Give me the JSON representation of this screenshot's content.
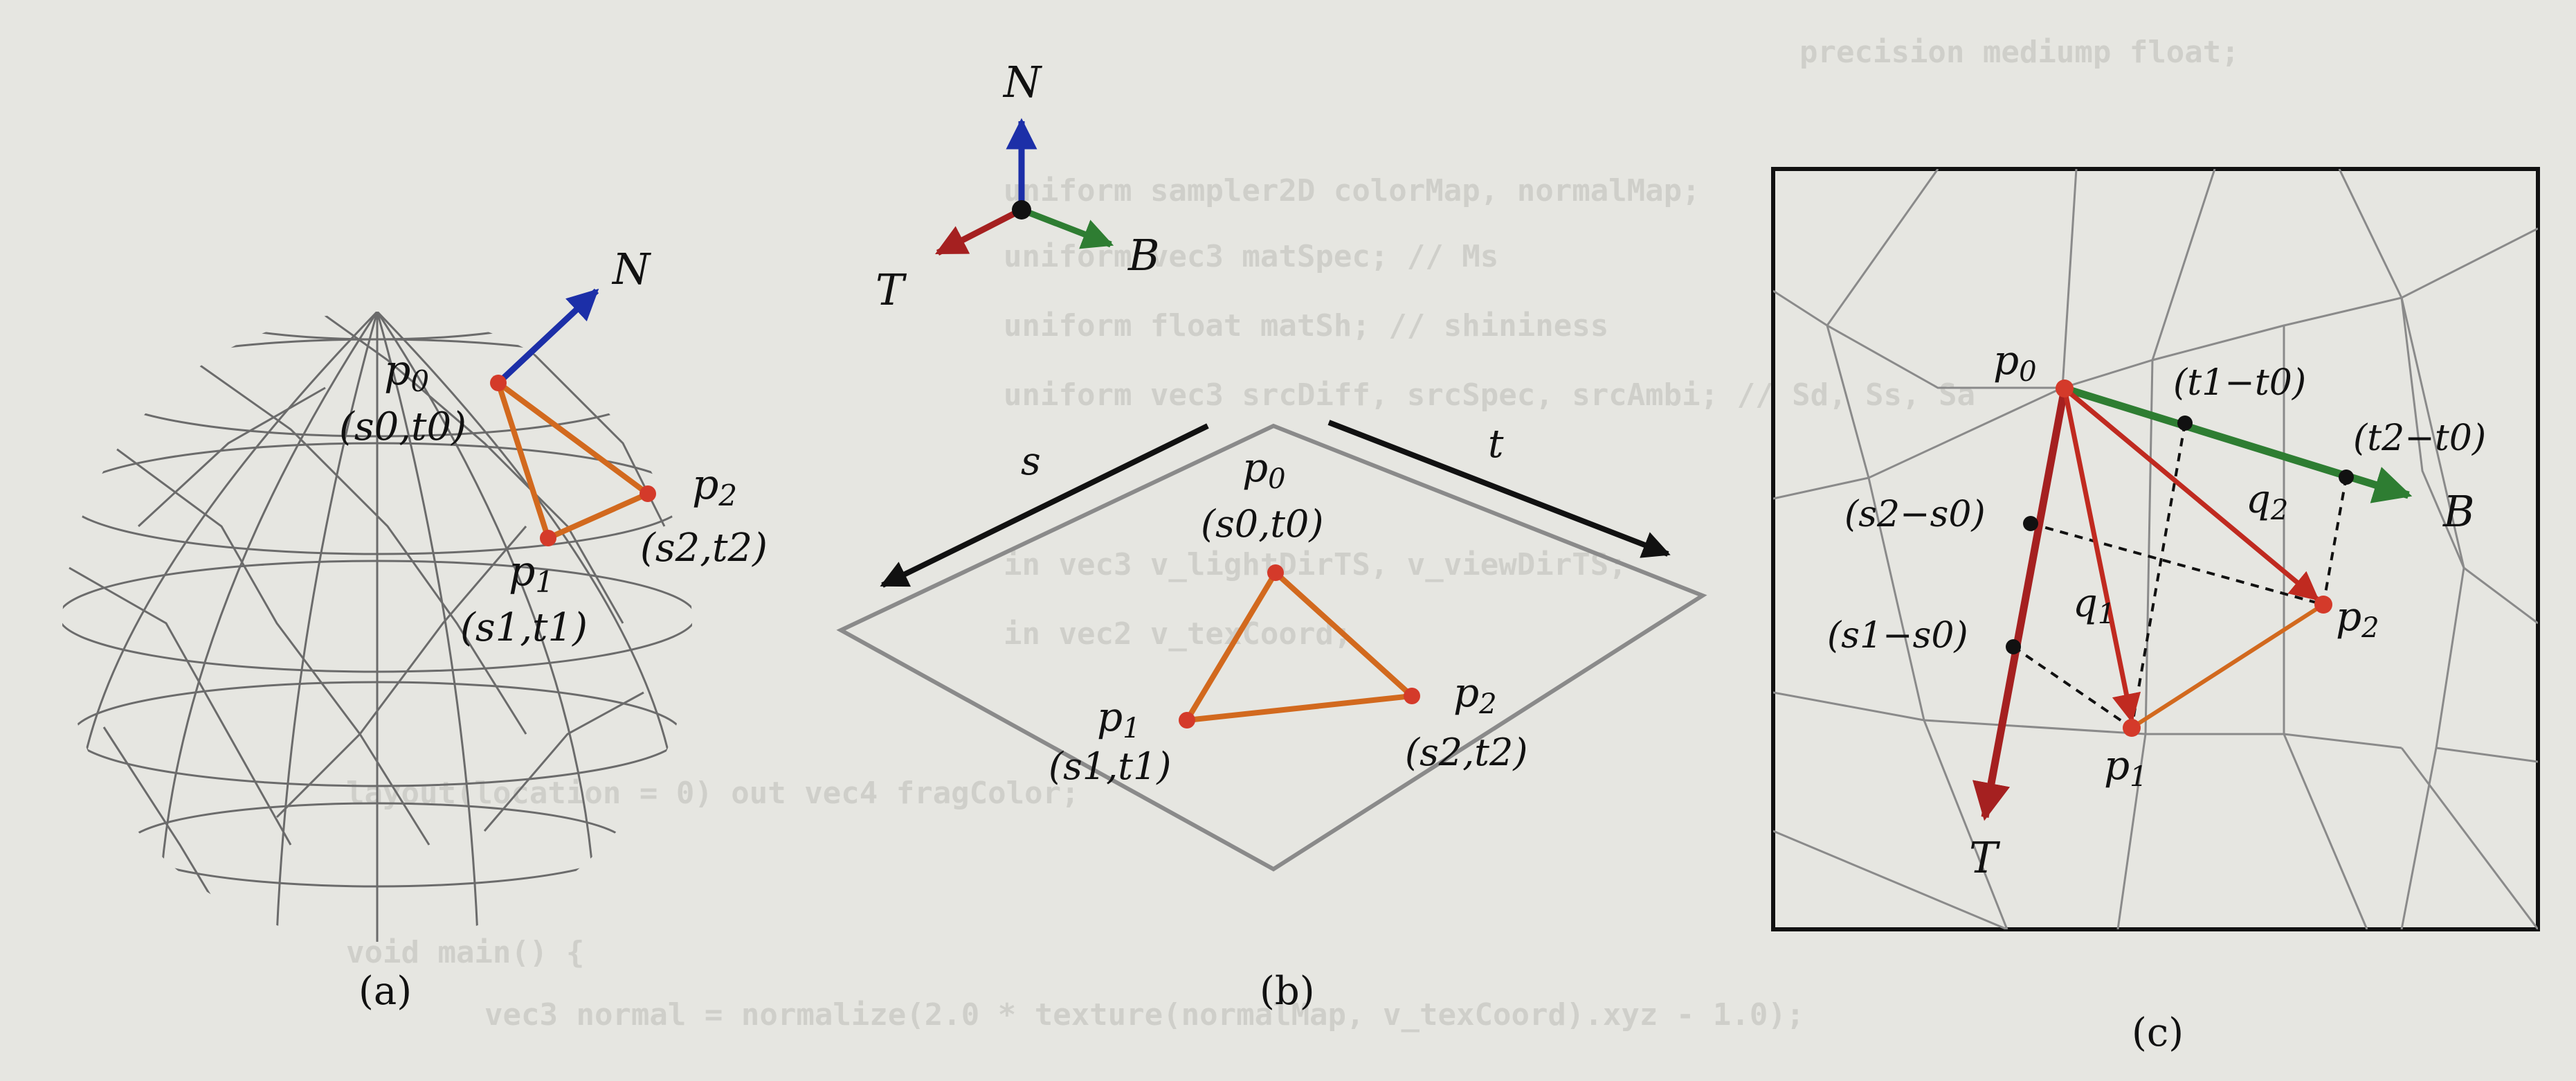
{
  "colors": {
    "paper": "#e6e6e1",
    "wire": "#6b6b6b",
    "triangle": "#d2691e",
    "vertex": "#d43a2a",
    "normal": "#1c2fa8",
    "tangent": "#a52020",
    "bitangent": "#2e7d32",
    "axis_arrow": "#111111"
  },
  "bleed_code": [
    "precision mediump float;",
    "uniform sampler2D colorMap, normalMap;",
    "uniform vec3 matSpec; // Ms",
    "uniform float matSh; // shininess",
    "uniform vec3 srcDiff, srcSpec, srcAmbi; // Sd, Ss, Sa",
    "in vec3 v_lightDirTS, v_viewDirTS;",
    "in vec2 v_texCoord;",
    "layout(location = 0) out vec4 fragColor;",
    "void main() {",
    "vec3 normal = normalize(2.0 * texture(normalMap, v_texCoord).xyz - 1.0);"
  ],
  "panel_a": {
    "caption": "(a)",
    "N": "N",
    "p0": "p",
    "p0_sub": "0",
    "p0_coord": "(s0,t0)",
    "p1": "p",
    "p1_sub": "1",
    "p1_coord": "(s1,t1)",
    "p2": "p",
    "p2_sub": "2",
    "p2_coord": "(s2,t2)"
  },
  "panel_b": {
    "caption": "(b)",
    "N": "N",
    "T": "T",
    "B": "B",
    "s": "s",
    "t": "t",
    "p0": "p",
    "p0_sub": "0",
    "p0_coord": "(s0,t0)",
    "p1": "p",
    "p1_sub": "1",
    "p1_coord": "(s1,t1)",
    "p2": "p",
    "p2_sub": "2",
    "p2_coord": "(s2,t2)"
  },
  "panel_c": {
    "caption": "(c)",
    "p0": "p",
    "p0_sub": "0",
    "p1": "p",
    "p1_sub": "1",
    "p2": "p",
    "p2_sub": "2",
    "q1": "q",
    "q1_sub": "1",
    "q2": "q",
    "q2_sub": "2",
    "T": "T",
    "B": "B",
    "t1_t0": "(t1−t0)",
    "t2_t0": "(t2−t0)",
    "s2_s0": "(s2−s0)",
    "s1_s0": "(s1−s0)"
  }
}
